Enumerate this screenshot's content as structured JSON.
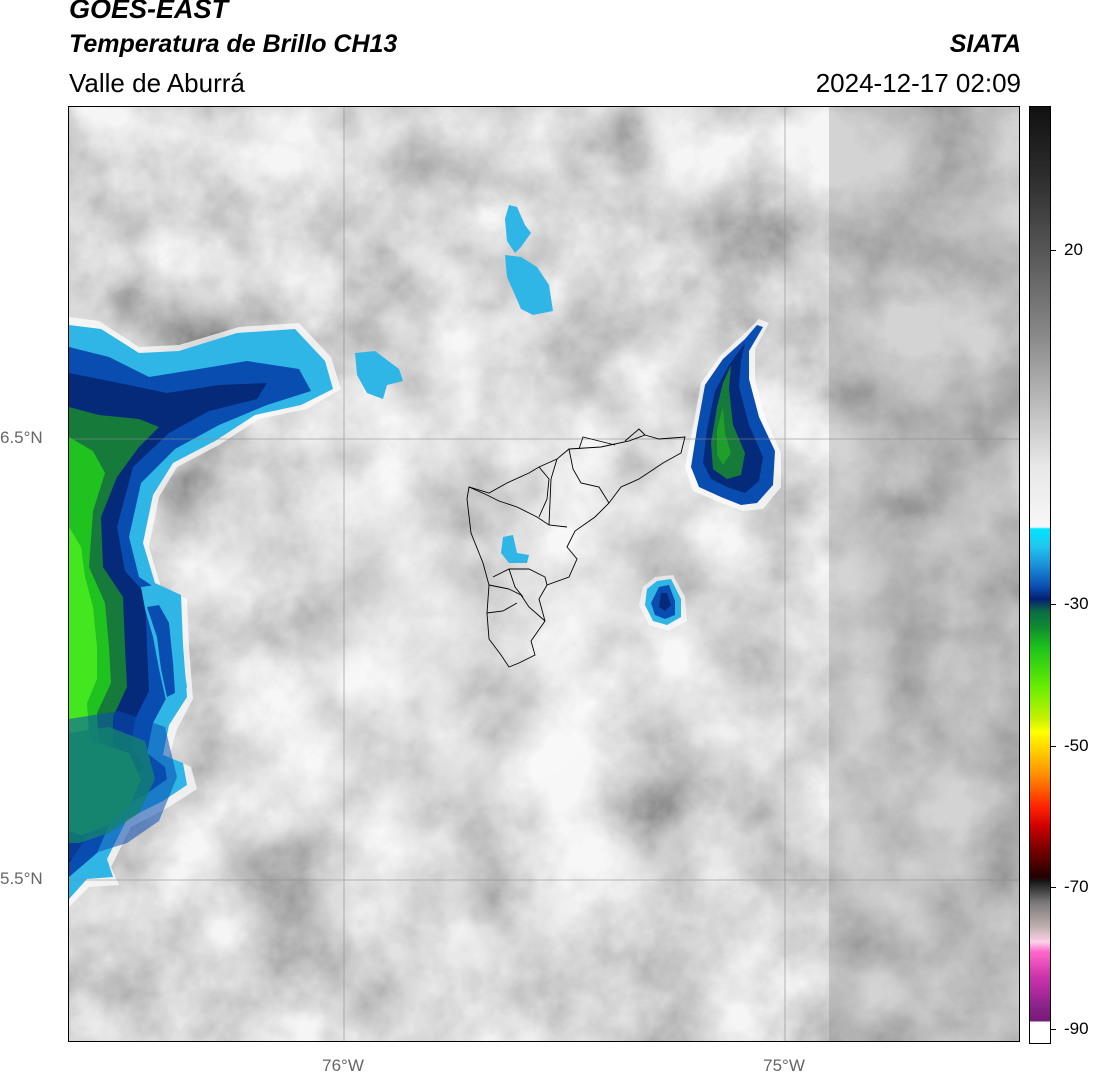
{
  "header": {
    "line1": "GOES-EAST",
    "line2": "Temperatura de Brillo CH13",
    "line3": "Valle de Aburrá",
    "org": "SIATA",
    "timestamp": "2024-12-17 02:09"
  },
  "map": {
    "lat_labels": [
      "6.5°N",
      "5.5°N"
    ],
    "lon_labels": [
      "76°W",
      "75°W"
    ]
  },
  "colorbar": {
    "labels": [
      "20",
      "-30",
      "-50",
      "-70",
      "-90"
    ]
  }
}
